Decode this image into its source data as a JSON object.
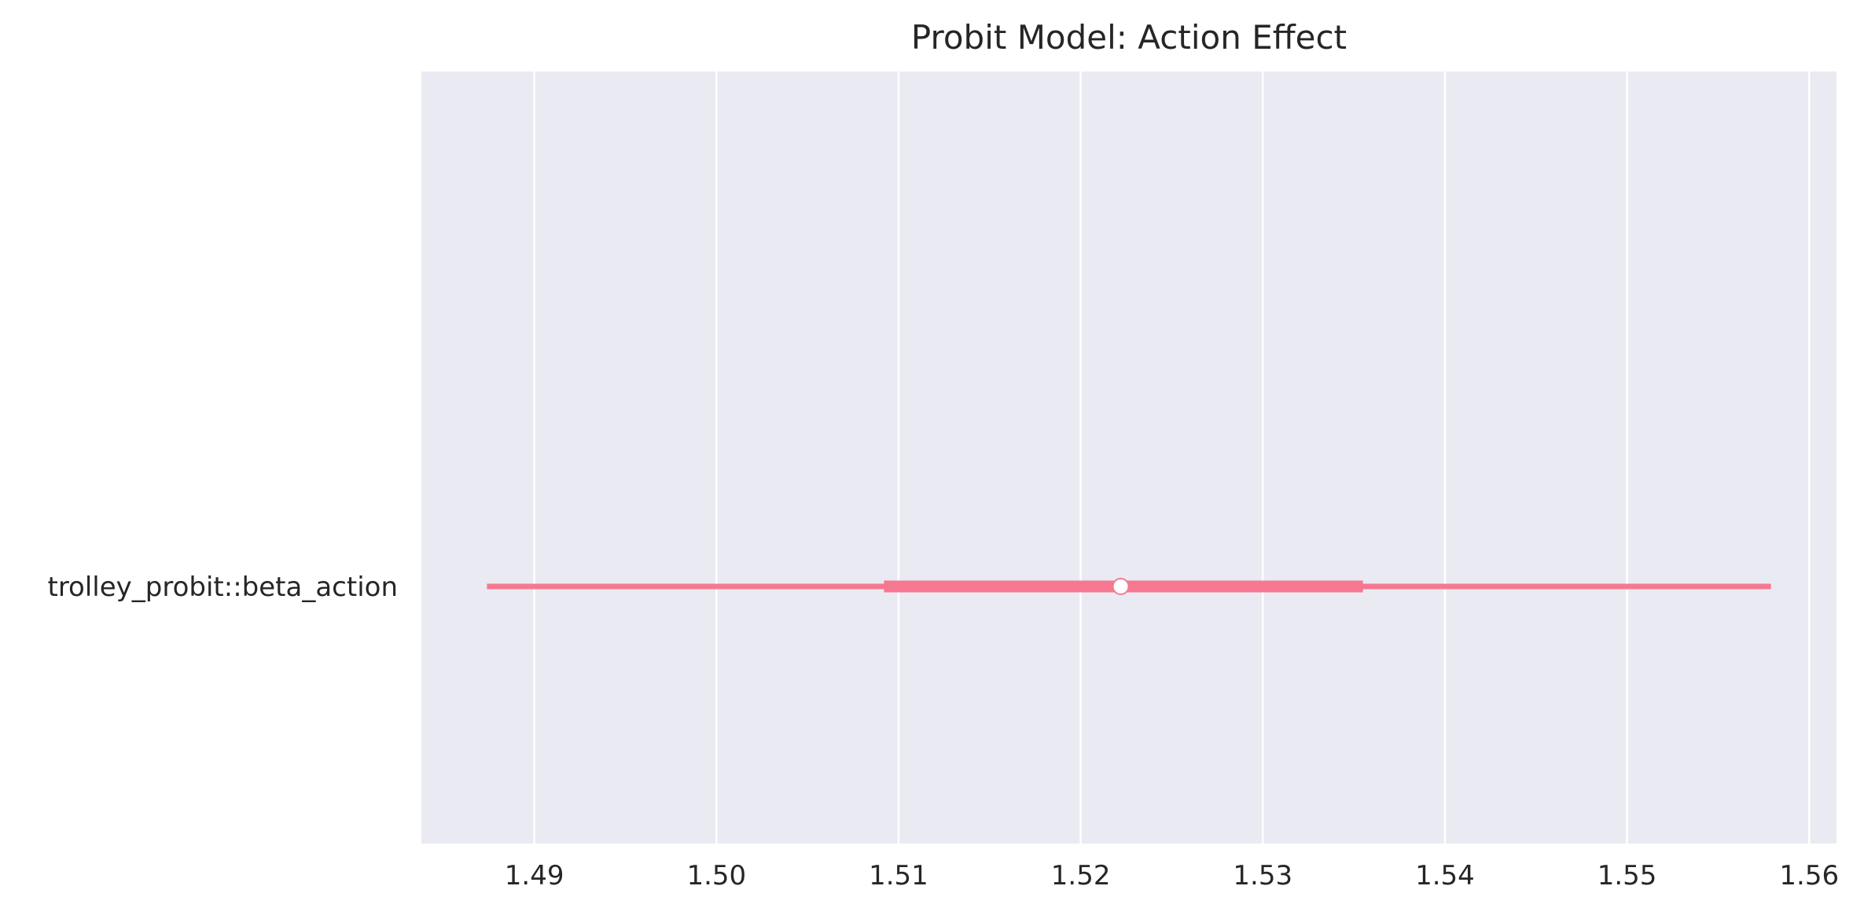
{
  "chart_data": {
    "type": "forest",
    "title": "Probit Model: Action Effect",
    "xlabel": "",
    "ylabel": "",
    "categories": [
      "trolley_probit::beta_action"
    ],
    "x_ticks": [
      1.49,
      1.5,
      1.51,
      1.52,
      1.53,
      1.54,
      1.55,
      1.56
    ],
    "x_tick_labels": [
      "1.49",
      "1.50",
      "1.51",
      "1.52",
      "1.53",
      "1.54",
      "1.55",
      "1.56"
    ],
    "xlim": [
      1.4838,
      1.5615
    ],
    "grid": true,
    "series": [
      {
        "category": "trolley_probit::beta_action",
        "point": 1.5222,
        "hdi_outer": [
          1.4874,
          1.5579
        ],
        "hdi_inner": [
          1.5092,
          1.5355
        ]
      }
    ],
    "colors": {
      "background": "#eaeaf2",
      "grid": "#ffffff",
      "series": "#f67890",
      "text": "#262626"
    }
  }
}
